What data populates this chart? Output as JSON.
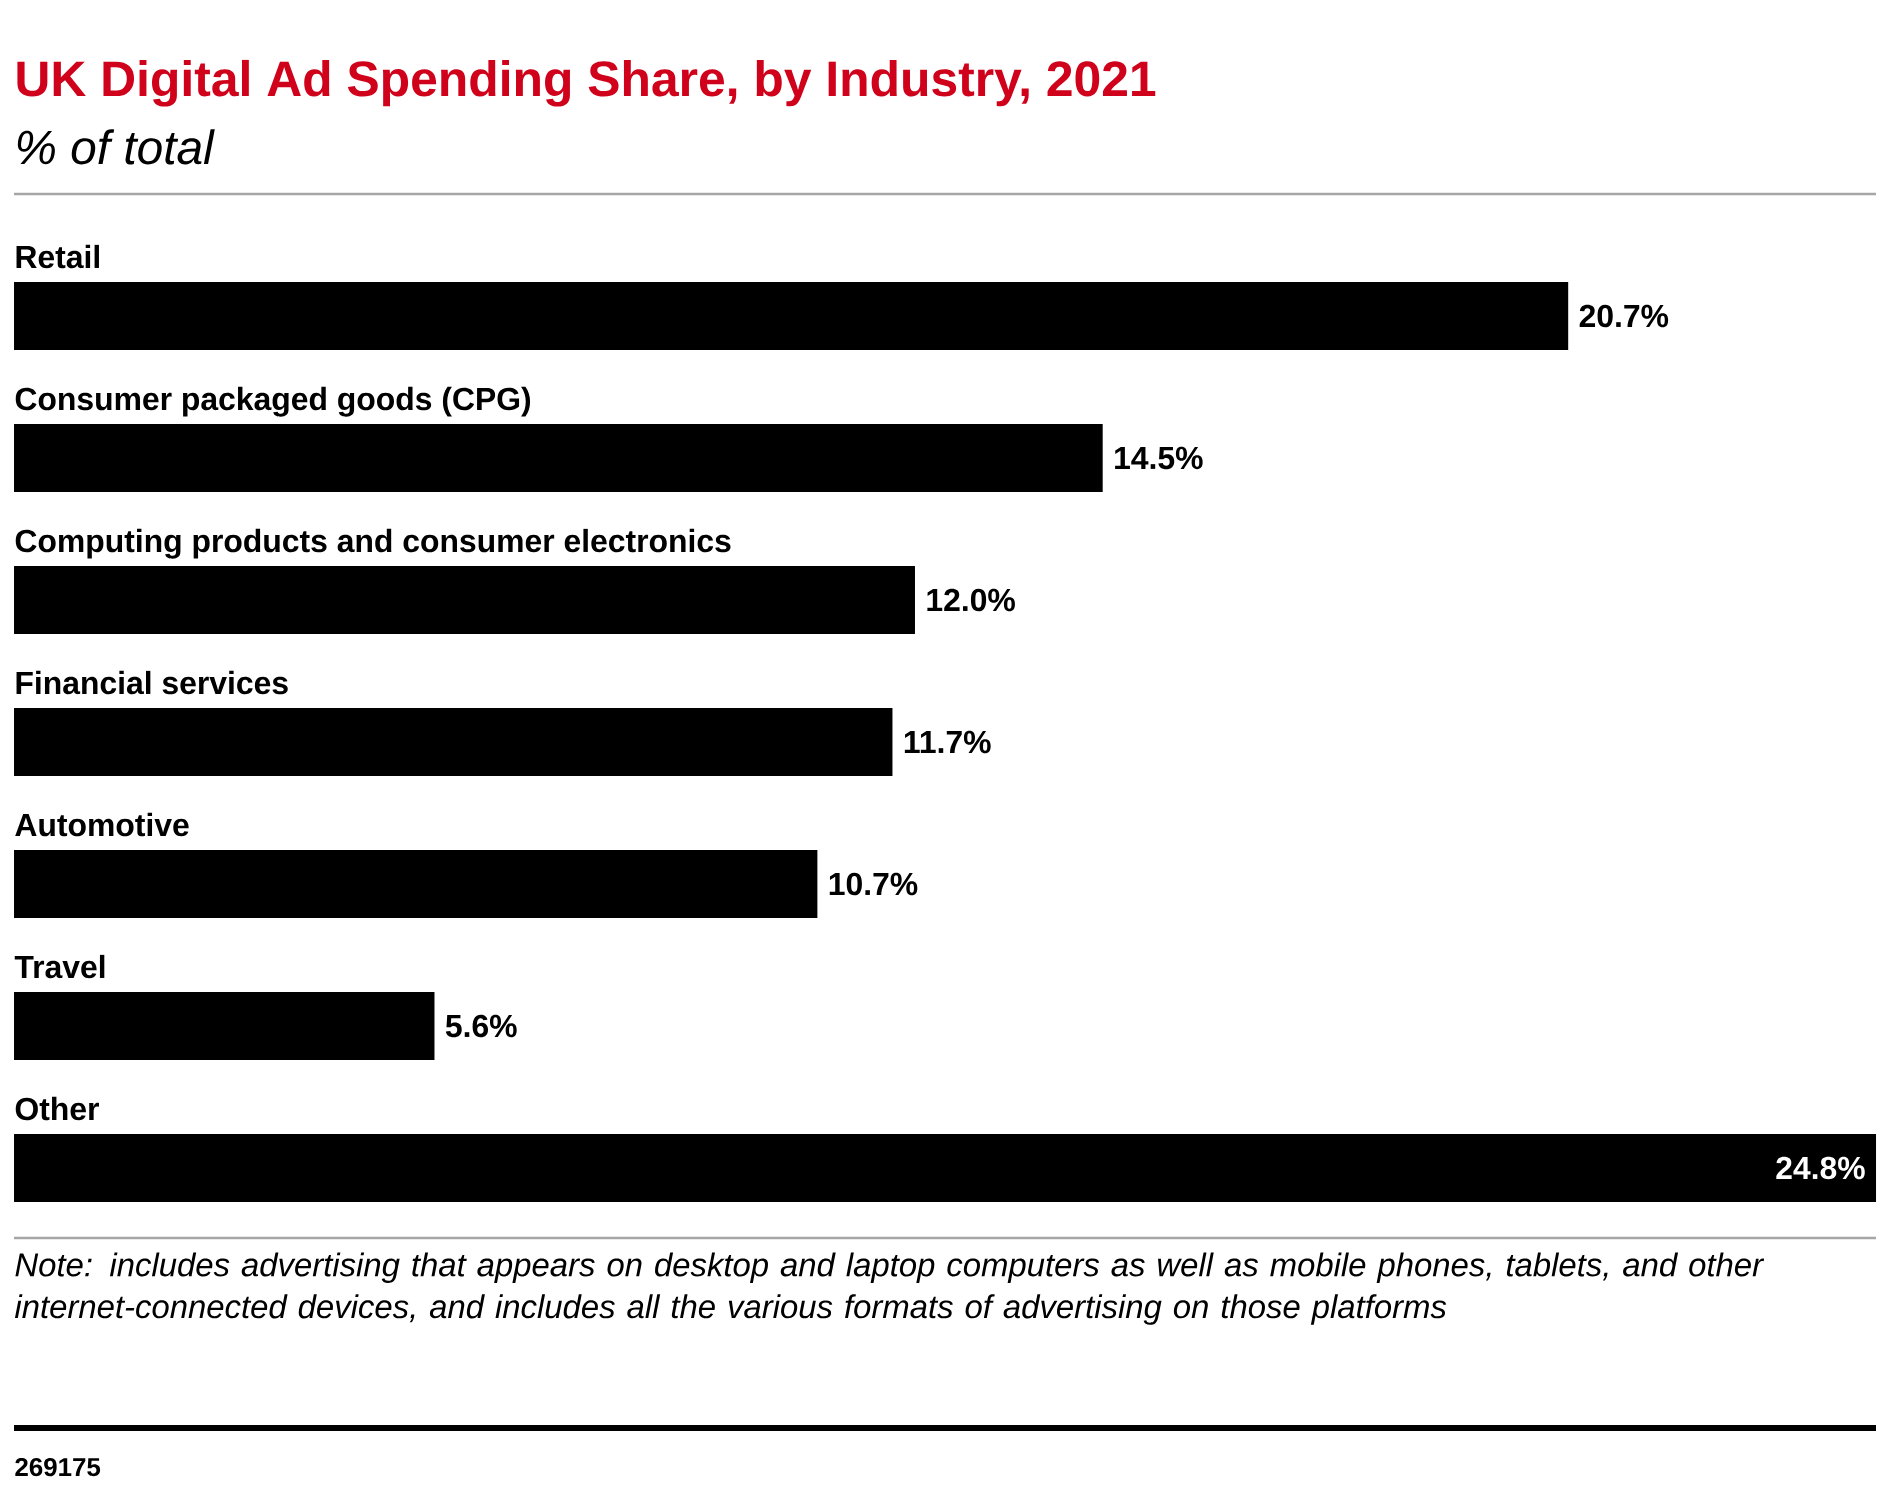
{
  "chart_data": {
    "type": "bar",
    "orientation": "horizontal",
    "title": "UK Digital Ad Spending Share, by Industry, 2021",
    "subtitle": "% of total",
    "categories": [
      "Retail",
      "Consumer packaged goods (CPG)",
      "Computing products and consumer electronics",
      "Financial services",
      "Automotive",
      "Travel",
      "Other"
    ],
    "values": [
      20.7,
      14.5,
      12.0,
      11.7,
      10.7,
      5.6,
      24.8
    ],
    "value_labels": [
      "20.7%",
      "14.5%",
      "12.0%",
      "11.7%",
      "10.7%",
      "5.6%",
      "24.8%"
    ],
    "color": "#000000",
    "annotations": [
      "Note: includes advertising that appears on desktop and laptop computers as well as mobile phones, tablets, and other internet-connected devices, and includes all the various formats of advertising on those platforms",
      "269175"
    ]
  }
}
